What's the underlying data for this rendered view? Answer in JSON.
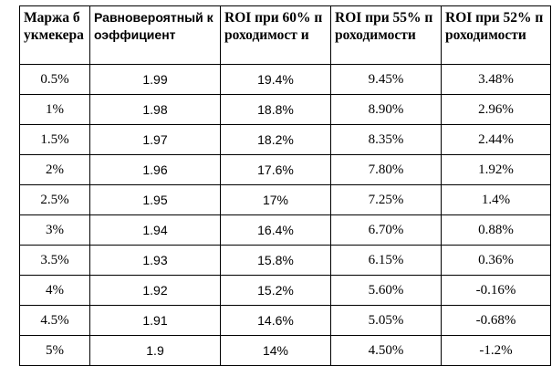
{
  "table": {
    "headers": [
      "Маржа букмекера",
      "Равновероятный коэффициент",
      "ROI при 60% проходимост и",
      "ROI при 55% проходимости",
      "ROI при 52% проходимости"
    ],
    "rows": [
      [
        "0.5%",
        "1.99",
        "19.4%",
        "9.45%",
        "3.48%"
      ],
      [
        "1%",
        "1.98",
        "18.8%",
        "8.90%",
        "2.96%"
      ],
      [
        "1.5%",
        "1.97",
        "18.2%",
        "8.35%",
        "2.44%"
      ],
      [
        "2%",
        "1.96",
        "17.6%",
        "7.80%",
        "1.92%"
      ],
      [
        "2.5%",
        "1.95",
        "17%",
        "7.25%",
        "1.4%"
      ],
      [
        "3%",
        "1.94",
        "16.4%",
        "6.70%",
        "0.88%"
      ],
      [
        "3.5%",
        "1.93",
        "15.8%",
        "6.15%",
        "0.36%"
      ],
      [
        "4%",
        "1.92",
        "15.2%",
        "5.60%",
        "-0.16%"
      ],
      [
        "4.5%",
        "1.91",
        "14.6%",
        "5.05%",
        "-0.68%"
      ],
      [
        "5%",
        "1.9",
        "14%",
        "4.50%",
        "-1.2%"
      ]
    ]
  }
}
